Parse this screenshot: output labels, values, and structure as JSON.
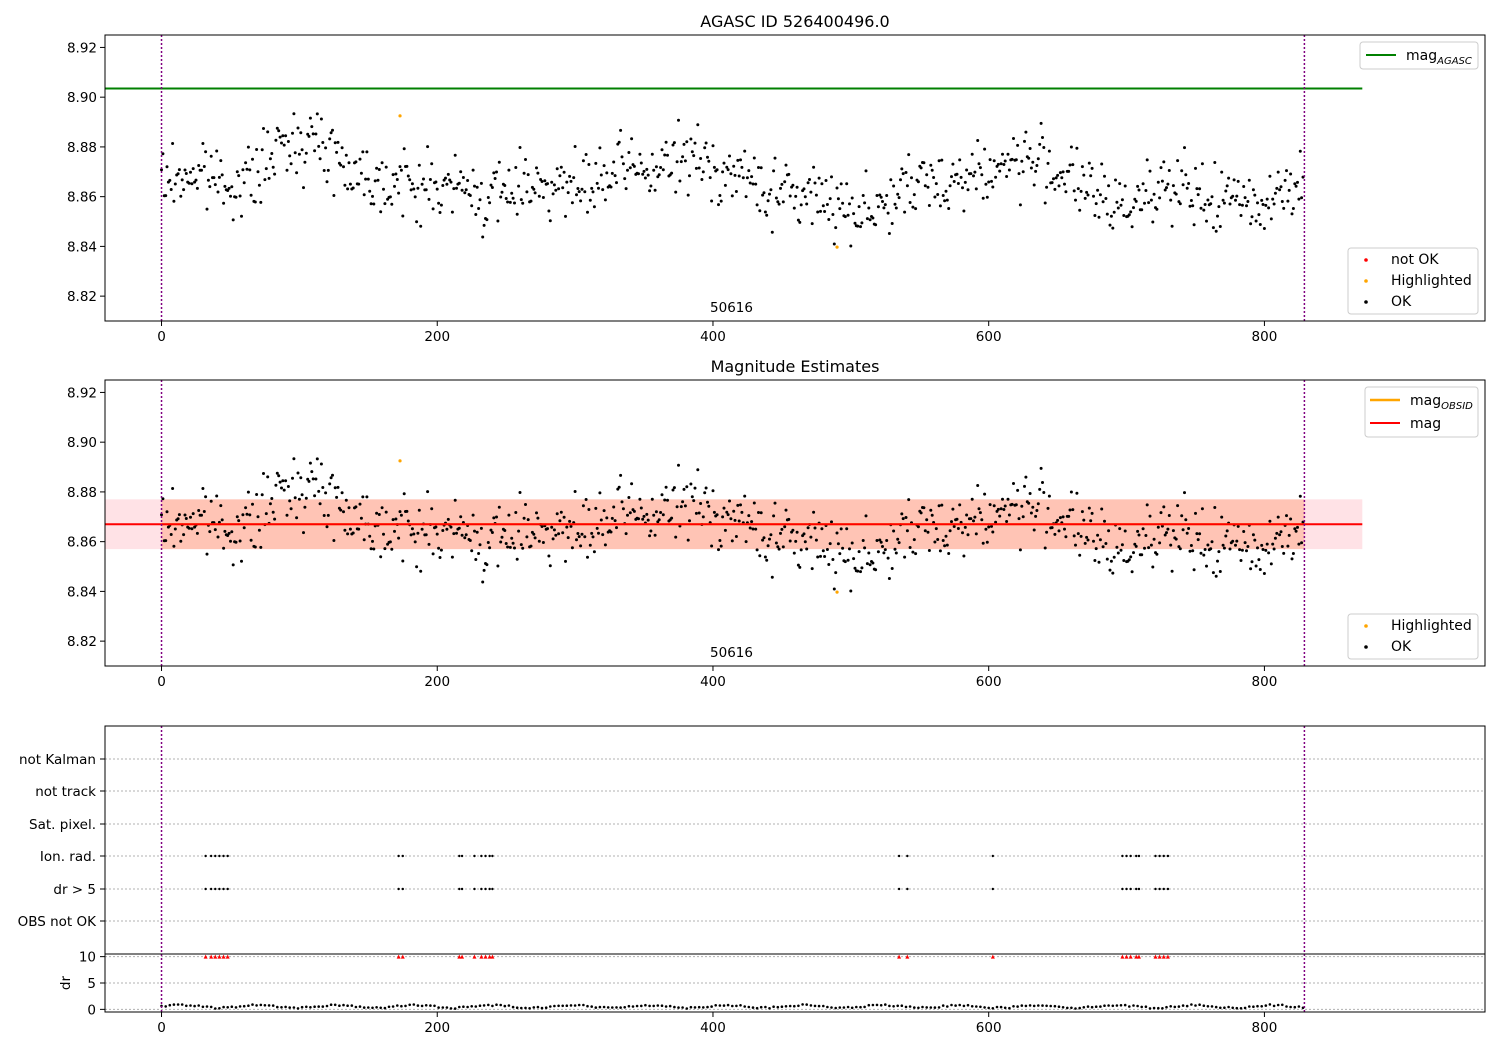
{
  "chart_data": [
    {
      "type": "scatter",
      "title": "AGASC ID 526400496.0",
      "xlim": [
        -41,
        960
      ],
      "ylim": [
        8.81,
        8.925
      ],
      "xticks": [
        0,
        200,
        400,
        600,
        800
      ],
      "yticks": [
        8.82,
        8.84,
        8.86,
        8.88,
        8.9,
        8.92
      ],
      "annotation": "50616",
      "vlines": [
        0,
        829
      ],
      "lines": [
        {
          "name": "mag",
          "sub": "AGASC",
          "color": "#008000",
          "y": 8.9035,
          "x": [
            -41,
            871
          ]
        }
      ],
      "highlighted": [
        {
          "x": 173,
          "y": 8.8925
        },
        {
          "x": 490,
          "y": 8.8397
        }
      ],
      "n_ok": 829,
      "ok_samples": [
        [
          0,
          8.866
        ],
        [
          20,
          8.869
        ],
        [
          40,
          8.868
        ],
        [
          60,
          8.864
        ],
        [
          80,
          8.876
        ],
        [
          100,
          8.884
        ],
        [
          120,
          8.88
        ],
        [
          140,
          8.87
        ],
        [
          160,
          8.867
        ],
        [
          180,
          8.864
        ],
        [
          200,
          8.864
        ],
        [
          220,
          8.863
        ],
        [
          240,
          8.858
        ],
        [
          260,
          8.866
        ],
        [
          280,
          8.866
        ],
        [
          300,
          8.862
        ],
        [
          320,
          8.866
        ],
        [
          340,
          8.872
        ],
        [
          360,
          8.87
        ],
        [
          380,
          8.876
        ],
        [
          400,
          8.872
        ],
        [
          420,
          8.868
        ],
        [
          440,
          8.862
        ],
        [
          460,
          8.86
        ],
        [
          480,
          8.86
        ],
        [
          500,
          8.855
        ],
        [
          520,
          8.856
        ],
        [
          540,
          8.862
        ],
        [
          560,
          8.866
        ],
        [
          580,
          8.868
        ],
        [
          600,
          8.87
        ],
        [
          620,
          8.875
        ],
        [
          640,
          8.873
        ],
        [
          660,
          8.868
        ],
        [
          680,
          8.858
        ],
        [
          700,
          8.856
        ],
        [
          720,
          8.866
        ],
        [
          740,
          8.862
        ],
        [
          760,
          8.858
        ],
        [
          780,
          8.859
        ],
        [
          800,
          8.858
        ],
        [
          820,
          8.866
        ],
        [
          829,
          8.866
        ]
      ],
      "legend": [
        {
          "label": "mag",
          "sub": "AGASC",
          "kind": "line",
          "color": "#008000"
        },
        {
          "label": "not OK",
          "kind": "dot",
          "color": "#ff0000"
        },
        {
          "label": "Highlighted",
          "kind": "dot",
          "color": "#ffa500"
        },
        {
          "label": "OK",
          "kind": "dot",
          "color": "#000000"
        }
      ]
    },
    {
      "type": "scatter",
      "title": "Magnitude Estimates",
      "xlim": [
        -41,
        960
      ],
      "ylim": [
        8.81,
        8.925
      ],
      "xticks": [
        0,
        200,
        400,
        600,
        800
      ],
      "yticks": [
        8.82,
        8.84,
        8.86,
        8.88,
        8.9,
        8.92
      ],
      "annotation": "50616",
      "vlines": [
        0,
        829
      ],
      "mag": 8.867,
      "mag_band": [
        8.857,
        8.877
      ],
      "mag_obsid": 8.867,
      "mag_obsid_band": [
        8.857,
        8.877
      ],
      "legend": [
        {
          "label": "mag",
          "sub": "OBSID",
          "kind": "line",
          "color": "#ffa500"
        },
        {
          "label": "mag",
          "kind": "line",
          "color": "#ff0000"
        },
        {
          "label": "Highlighted",
          "kind": "dot",
          "color": "#ffa500"
        },
        {
          "label": "OK",
          "kind": "dot",
          "color": "#000000"
        }
      ]
    },
    {
      "type": "scatter",
      "flag_labels": [
        "not Kalman",
        "not track",
        "Sat. pixel.",
        "Ion. rad.",
        "dr > 5",
        "OBS not OK"
      ],
      "flag_indices": [
        32,
        36,
        39,
        42,
        45,
        48,
        172,
        175,
        216,
        218,
        227,
        232,
        235,
        238,
        240,
        535,
        541,
        603,
        697,
        700,
        703,
        707,
        709,
        721,
        724,
        727,
        730
      ],
      "xlim": [
        -41,
        960
      ],
      "xticks": [
        0,
        200,
        400,
        600,
        800
      ],
      "dr_ylabel": "dr",
      "dr_yticks": [
        0,
        5,
        10
      ],
      "dr_ylim": [
        -0.5,
        10.5
      ],
      "dr_clip_marker_value": 10,
      "vlines": [
        0,
        829
      ]
    }
  ]
}
